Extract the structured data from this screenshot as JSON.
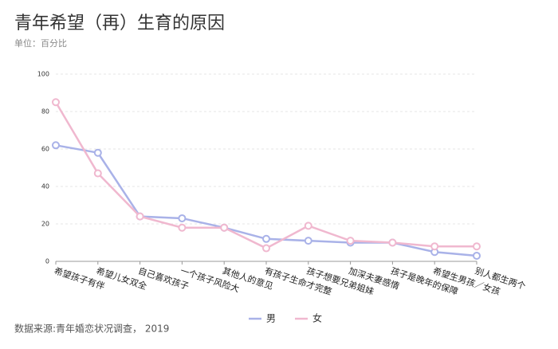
{
  "chart_data": {
    "type": "line",
    "title": "青年希望（再）生育的原因",
    "subtitle": "单位：百分比",
    "source": "数据来源:青年婚恋状况调查， 2019",
    "categories": [
      "希望孩子有伴",
      "希望儿女双全",
      "自己喜欢孩子",
      "一个孩子风险大",
      "其他人的意见",
      "有孩子生命才完整",
      "孩子想要兄弟姐妹",
      "加深夫妻感情",
      "孩子是晚年的保障",
      "希望生男孩／女孩",
      "别人都生两个"
    ],
    "series": [
      {
        "name": "男",
        "color": "#a9b2e8",
        "values": [
          62,
          58,
          24,
          23,
          18,
          12,
          11,
          10,
          10,
          5,
          3
        ]
      },
      {
        "name": "女",
        "color": "#f0b8cf",
        "values": [
          85,
          47,
          24,
          18,
          18,
          7,
          19,
          11,
          10,
          8,
          8
        ]
      }
    ],
    "ylim": [
      0,
      100
    ],
    "yticks": [
      0,
      20,
      40,
      60,
      80,
      100
    ],
    "grid": true,
    "legend": "bottom"
  }
}
